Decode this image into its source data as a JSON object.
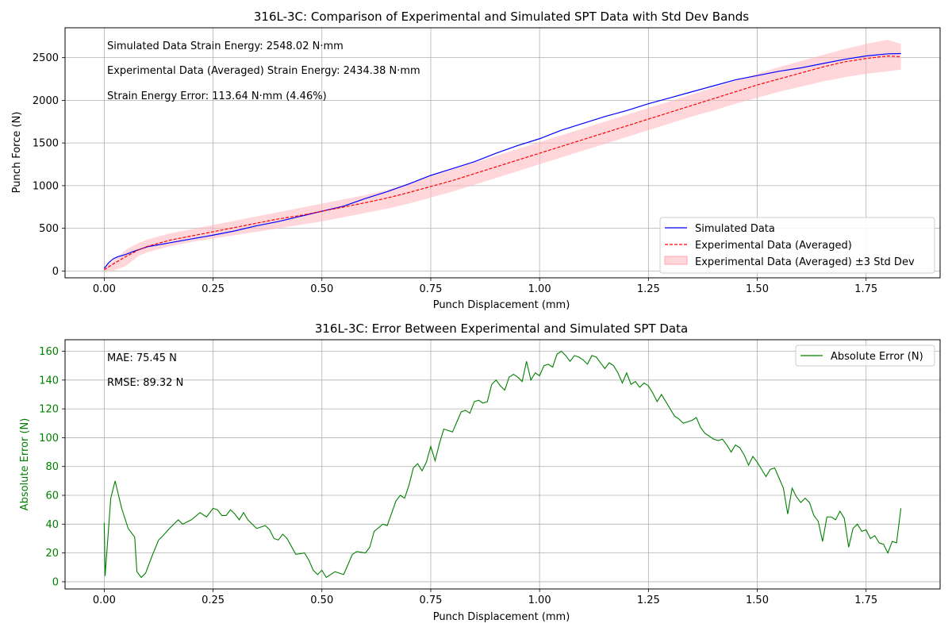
{
  "chart_data": [
    {
      "type": "line",
      "title": "316L-3C: Comparison of Experimental and Simulated SPT Data with Std Dev Bands",
      "xlabel": "Punch Displacement (mm)",
      "ylabel": "Punch Force (N)",
      "xlim": [
        -0.09,
        1.92
      ],
      "ylim": [
        -80,
        2850
      ],
      "xticks": [
        0.0,
        0.25,
        0.5,
        0.75,
        1.0,
        1.25,
        1.5,
        1.75
      ],
      "xtick_labels": [
        "0.00",
        "0.25",
        "0.50",
        "0.75",
        "1.00",
        "1.25",
        "1.50",
        "1.75"
      ],
      "yticks": [
        0,
        500,
        1000,
        1500,
        2000,
        2500
      ],
      "ytick_labels": [
        "0",
        "500",
        "1000",
        "1500",
        "2000",
        "2500"
      ],
      "grid": true,
      "legend_position": "lower-right",
      "annotations": [
        "Simulated Data Strain Energy: 2548.02 N·mm",
        "Experimental Data (Averaged) Strain Energy: 2434.38 N·mm",
        "Strain Energy Error: 113.64 N·mm (4.46%)"
      ],
      "series": [
        {
          "name": "Simulated Data",
          "color": "#0000ff",
          "style": "solid",
          "x": [
            0.0,
            0.01,
            0.02,
            0.03,
            0.05,
            0.07,
            0.1,
            0.15,
            0.2,
            0.25,
            0.3,
            0.35,
            0.4,
            0.45,
            0.5,
            0.55,
            0.6,
            0.65,
            0.7,
            0.75,
            0.8,
            0.85,
            0.9,
            0.95,
            1.0,
            1.05,
            1.1,
            1.15,
            1.2,
            1.25,
            1.3,
            1.35,
            1.4,
            1.45,
            1.5,
            1.55,
            1.6,
            1.65,
            1.7,
            1.75,
            1.8,
            1.83
          ],
          "y": [
            30,
            95,
            140,
            165,
            195,
            235,
            285,
            330,
            375,
            420,
            470,
            530,
            580,
            640,
            700,
            760,
            850,
            930,
            1020,
            1120,
            1200,
            1280,
            1380,
            1470,
            1550,
            1650,
            1730,
            1810,
            1880,
            1960,
            2030,
            2100,
            2170,
            2240,
            2290,
            2340,
            2380,
            2430,
            2480,
            2520,
            2545,
            2548
          ]
        },
        {
          "name": "Experimental Data (Averaged)",
          "color": "#ff0000",
          "style": "dashed",
          "x": [
            0.0,
            0.02,
            0.05,
            0.08,
            0.1,
            0.15,
            0.2,
            0.25,
            0.3,
            0.35,
            0.4,
            0.45,
            0.5,
            0.55,
            0.6,
            0.65,
            0.7,
            0.75,
            0.8,
            0.85,
            0.9,
            0.95,
            1.0,
            1.05,
            1.1,
            1.15,
            1.2,
            1.25,
            1.3,
            1.35,
            1.4,
            1.45,
            1.5,
            1.55,
            1.6,
            1.65,
            1.7,
            1.75,
            1.8,
            1.83
          ],
          "y": [
            15,
            80,
            170,
            250,
            290,
            360,
            410,
            460,
            510,
            560,
            610,
            650,
            700,
            750,
            800,
            855,
            920,
            990,
            1060,
            1140,
            1220,
            1300,
            1380,
            1460,
            1540,
            1620,
            1700,
            1780,
            1860,
            1940,
            2020,
            2100,
            2180,
            2250,
            2320,
            2390,
            2450,
            2490,
            2520,
            2510
          ]
        }
      ],
      "band": {
        "name": "Experimental Data (Averaged) ±3 Std Dev",
        "color": "#ffb6bd",
        "x": [
          0.0,
          0.02,
          0.05,
          0.08,
          0.1,
          0.15,
          0.2,
          0.25,
          0.3,
          0.35,
          0.4,
          0.45,
          0.5,
          0.55,
          0.6,
          0.65,
          0.7,
          0.75,
          0.8,
          0.85,
          0.9,
          0.95,
          1.0,
          1.05,
          1.1,
          1.15,
          1.2,
          1.25,
          1.3,
          1.35,
          1.4,
          1.45,
          1.5,
          1.55,
          1.6,
          1.65,
          1.7,
          1.75,
          1.8,
          1.83
        ],
        "lower": [
          0,
          0,
          60,
          180,
          220,
          290,
          340,
          380,
          420,
          460,
          500,
          540,
          580,
          630,
          680,
          730,
          790,
          860,
          930,
          1010,
          1090,
          1170,
          1250,
          1330,
          1410,
          1490,
          1570,
          1650,
          1730,
          1810,
          1880,
          1960,
          2030,
          2100,
          2160,
          2220,
          2270,
          2310,
          2340,
          2360
        ],
        "upper": [
          40,
          120,
          250,
          330,
          370,
          440,
          490,
          540,
          590,
          640,
          690,
          740,
          790,
          840,
          890,
          950,
          1030,
          1110,
          1190,
          1270,
          1350,
          1430,
          1510,
          1590,
          1670,
          1750,
          1830,
          1910,
          1990,
          2070,
          2150,
          2230,
          2310,
          2390,
          2460,
          2530,
          2600,
          2660,
          2710,
          2660
        ]
      }
    },
    {
      "type": "line",
      "title": "316L-3C: Error Between Experimental and Simulated SPT Data",
      "xlabel": "Punch Displacement (mm)",
      "ylabel": "Absolute Error (N)",
      "xlim": [
        -0.09,
        1.92
      ],
      "ylim": [
        -5,
        168
      ],
      "xticks": [
        0.0,
        0.25,
        0.5,
        0.75,
        1.0,
        1.25,
        1.5,
        1.75
      ],
      "xtick_labels": [
        "0.00",
        "0.25",
        "0.50",
        "0.75",
        "1.00",
        "1.25",
        "1.50",
        "1.75"
      ],
      "yticks": [
        0,
        20,
        40,
        60,
        80,
        100,
        120,
        140,
        160
      ],
      "ytick_labels": [
        "0",
        "20",
        "40",
        "60",
        "80",
        "100",
        "120",
        "140",
        "160"
      ],
      "grid": true,
      "legend_position": "top-right",
      "annotations": [
        "MAE: 75.45 N",
        "RMSE: 89.32 N"
      ],
      "ylabel_color": "#008000",
      "series": [
        {
          "name": "Absolute Error (N)",
          "color": "#008000",
          "style": "solid",
          "x": [
            0.0,
            0.002,
            0.015,
            0.025,
            0.04,
            0.055,
            0.07,
            0.075,
            0.085,
            0.095,
            0.11,
            0.125,
            0.135,
            0.15,
            0.17,
            0.18,
            0.2,
            0.22,
            0.235,
            0.25,
            0.26,
            0.27,
            0.28,
            0.29,
            0.3,
            0.31,
            0.32,
            0.33,
            0.35,
            0.37,
            0.38,
            0.39,
            0.4,
            0.41,
            0.42,
            0.44,
            0.46,
            0.47,
            0.48,
            0.49,
            0.5,
            0.51,
            0.53,
            0.55,
            0.56,
            0.57,
            0.58,
            0.6,
            0.61,
            0.62,
            0.64,
            0.65,
            0.67,
            0.68,
            0.69,
            0.7,
            0.71,
            0.72,
            0.73,
            0.74,
            0.75,
            0.76,
            0.77,
            0.78,
            0.8,
            0.82,
            0.83,
            0.84,
            0.85,
            0.86,
            0.87,
            0.88,
            0.89,
            0.9,
            0.91,
            0.92,
            0.93,
            0.94,
            0.95,
            0.96,
            0.97,
            0.98,
            0.99,
            1.0,
            1.01,
            1.02,
            1.03,
            1.04,
            1.05,
            1.06,
            1.07,
            1.08,
            1.09,
            1.1,
            1.11,
            1.12,
            1.13,
            1.14,
            1.15,
            1.16,
            1.17,
            1.18,
            1.19,
            1.2,
            1.21,
            1.22,
            1.23,
            1.24,
            1.25,
            1.26,
            1.27,
            1.28,
            1.3,
            1.31,
            1.32,
            1.33,
            1.35,
            1.36,
            1.37,
            1.38,
            1.4,
            1.41,
            1.42,
            1.43,
            1.44,
            1.45,
            1.46,
            1.47,
            1.48,
            1.49,
            1.5,
            1.51,
            1.52,
            1.53,
            1.54,
            1.55,
            1.56,
            1.57,
            1.58,
            1.59,
            1.6,
            1.61,
            1.62,
            1.63,
            1.64,
            1.65,
            1.66,
            1.67,
            1.68,
            1.69,
            1.7,
            1.71,
            1.72,
            1.73,
            1.74,
            1.75,
            1.76,
            1.77,
            1.78,
            1.79,
            1.8,
            1.81,
            1.82,
            1.83
          ],
          "y": [
            41,
            4,
            58,
            70,
            51,
            37,
            31,
            7,
            3,
            6,
            18,
            29,
            32,
            37,
            43,
            40,
            43,
            48,
            45,
            51,
            50,
            46,
            46,
            50,
            47,
            43,
            48,
            43,
            37,
            39,
            36,
            30,
            29,
            33,
            30,
            19,
            20,
            15,
            8,
            5,
            8,
            3,
            7,
            5,
            12,
            19,
            21,
            20,
            24,
            35,
            40,
            39,
            56,
            60,
            58,
            67,
            79,
            82,
            77,
            83,
            94,
            84,
            96,
            106,
            104,
            118,
            119,
            117,
            125,
            126,
            124,
            125,
            137,
            140,
            136,
            133,
            142,
            144,
            142,
            139,
            153,
            140,
            145,
            143,
            150,
            151,
            149,
            158,
            160,
            157,
            153,
            157,
            156,
            154,
            151,
            157,
            156,
            152,
            148,
            152,
            150,
            145,
            138,
            145,
            137,
            139,
            135,
            138,
            136,
            131,
            125,
            130,
            120,
            115,
            113,
            110,
            112,
            114,
            107,
            103,
            99,
            98,
            99,
            95,
            90,
            95,
            93,
            88,
            81,
            87,
            83,
            78,
            73,
            78,
            79,
            72,
            65,
            47,
            65,
            59,
            55,
            58,
            55,
            46,
            42,
            28,
            45,
            45,
            43,
            49,
            44,
            24,
            37,
            40,
            35,
            36,
            30,
            32,
            27,
            26,
            20,
            28,
            27,
            51
          ]
        }
      ]
    }
  ]
}
